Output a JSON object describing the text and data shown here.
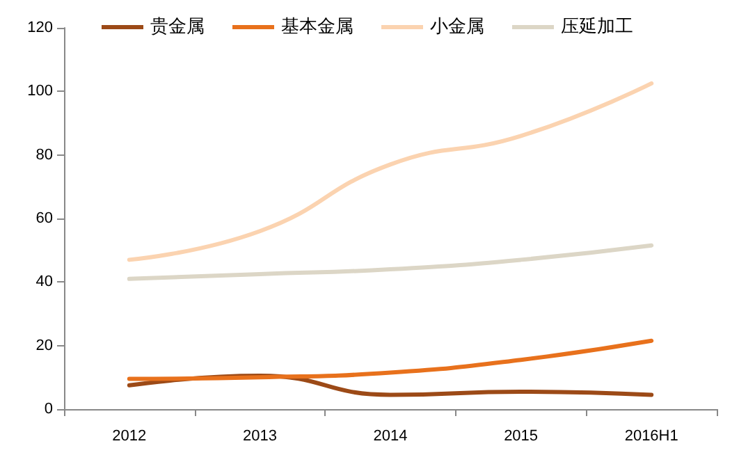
{
  "chart_data": {
    "type": "line",
    "categories": [
      "2012",
      "2013",
      "2014",
      "2015",
      "2016H1"
    ],
    "series": [
      {
        "name": "贵金属",
        "color": "#9c4a17",
        "values": [
          7.5,
          10.5,
          4.5,
          5.5,
          4.5
        ]
      },
      {
        "name": "基本金属",
        "color": "#e8711c",
        "values": [
          9.5,
          10,
          11.5,
          15.5,
          21.5
        ]
      },
      {
        "name": "小金属",
        "color": "#fbd3b0",
        "values": [
          47,
          56,
          77,
          86,
          102.5
        ]
      },
      {
        "name": "压延加工",
        "color": "#dcd6c6",
        "values": [
          41,
          42.5,
          44,
          47,
          51.5
        ]
      }
    ],
    "ylim": [
      0,
      120
    ],
    "yticks": [
      0,
      20,
      40,
      60,
      80,
      100,
      120
    ],
    "grid": false,
    "legend": "top",
    "marker": "none",
    "line_style": "solid"
  }
}
